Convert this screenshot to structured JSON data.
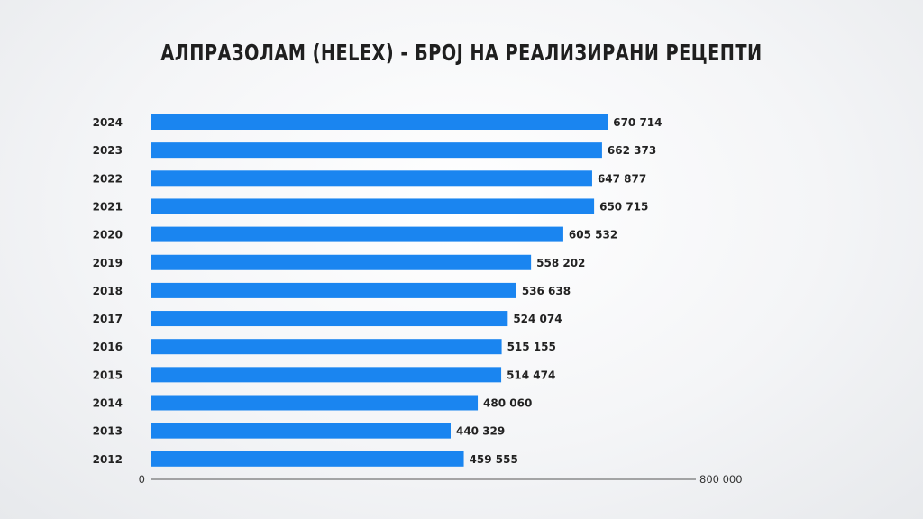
{
  "chart_data": {
    "type": "bar",
    "orientation": "horizontal",
    "title": "АЛПРАЗОЛАМ (HELEX) - БРОЈ НА РЕАЛИЗИРАНИ РЕЦЕПТИ",
    "categories": [
      "2024",
      "2023",
      "2022",
      "2021",
      "2020",
      "2019",
      "2018",
      "2017",
      "2016",
      "2015",
      "2014",
      "2013",
      "2012"
    ],
    "values": [
      670714,
      662373,
      647877,
      650715,
      605532,
      558202,
      536638,
      524074,
      515155,
      514474,
      480060,
      440329,
      459555
    ],
    "value_labels": [
      "670 714",
      "662 373",
      "647 877",
      "650 715",
      "605 532",
      "558 202",
      "536 638",
      "524 074",
      "515 155",
      "514 474",
      "480 060",
      "440 329",
      "459 555"
    ],
    "xlim": [
      0,
      800000
    ],
    "x_tick_labels": [
      "0",
      "800 000"
    ],
    "bar_color": "#1a85f0",
    "grid": false,
    "legend": "none"
  }
}
